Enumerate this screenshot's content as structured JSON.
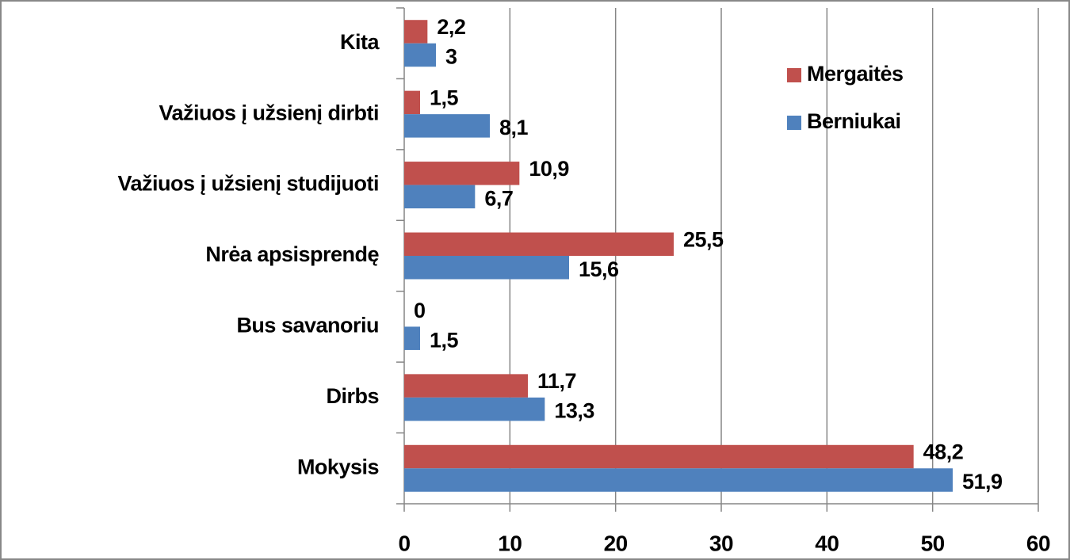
{
  "chart_data": {
    "type": "bar",
    "orientation": "horizontal",
    "categories": [
      "Kita",
      "Važiuos į užsienį dirbti",
      "Važiuos į užsienį studijuoti",
      "Nrėa apsisprendę",
      "Bus savanoriu",
      "Dirbs",
      "Mokysis"
    ],
    "series": [
      {
        "name": "Mergaitės",
        "color": "#c0504d",
        "values": [
          2.2,
          1.5,
          10.9,
          25.5,
          0,
          11.7,
          48.2
        ],
        "value_labels": [
          "2,2",
          "1,5",
          "10,9",
          "25,5",
          "0",
          "11,7",
          "48,2"
        ]
      },
      {
        "name": "Berniukai",
        "color": "#4f81bd",
        "values": [
          3,
          8.1,
          6.7,
          15.6,
          1.5,
          13.3,
          51.9
        ],
        "value_labels": [
          "3",
          "8,1",
          "6,7",
          "15,6",
          "1,5",
          "13,3",
          "51,9"
        ]
      }
    ],
    "xlim": [
      0,
      60
    ],
    "xticks": [
      0,
      10,
      20,
      30,
      40,
      50,
      60
    ],
    "grid": true,
    "legend": "upper right"
  }
}
